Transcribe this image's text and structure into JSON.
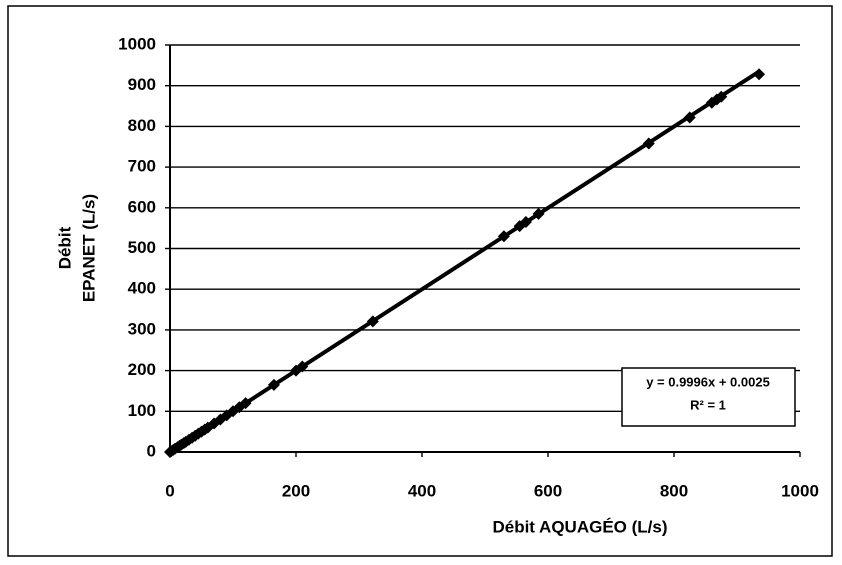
{
  "chart_data": {
    "type": "scatter",
    "x_label": "Débit AQUAGÉO (L/s)",
    "y_label": [
      "Débit",
      "EPANET (L/s)"
    ],
    "x": [
      0,
      2,
      5,
      8,
      12,
      15,
      18,
      22,
      25,
      30,
      35,
      40,
      45,
      50,
      55,
      60,
      70,
      80,
      90,
      100,
      110,
      120,
      165,
      200,
      210,
      322,
      530,
      555,
      565,
      585,
      760,
      825,
      860,
      868,
      875,
      935
    ],
    "series": [
      {
        "name": "EPANET",
        "color": "#000000",
        "values": [
          0,
          2,
          5,
          8,
          12,
          15,
          18,
          22,
          25,
          30,
          35,
          40,
          45,
          50,
          55,
          60,
          70,
          80,
          90,
          100,
          110,
          120,
          165,
          200,
          210,
          321,
          530,
          555,
          565,
          585,
          758,
          822,
          858,
          866,
          873,
          928
        ]
      }
    ],
    "xlim": [
      0,
      1000
    ],
    "xticks": [
      0,
      200,
      400,
      600,
      800,
      1000
    ],
    "ylim": [
      0,
      1000
    ],
    "yticks": [
      0,
      100,
      200,
      300,
      400,
      500,
      600,
      700,
      800,
      900,
      1000
    ],
    "grid": true,
    "trendline": {
      "slope": 0.9996,
      "intercept": 0.0025,
      "label": "y = 0.9996x + 0.0025",
      "r2_label": "R² = 1"
    }
  }
}
